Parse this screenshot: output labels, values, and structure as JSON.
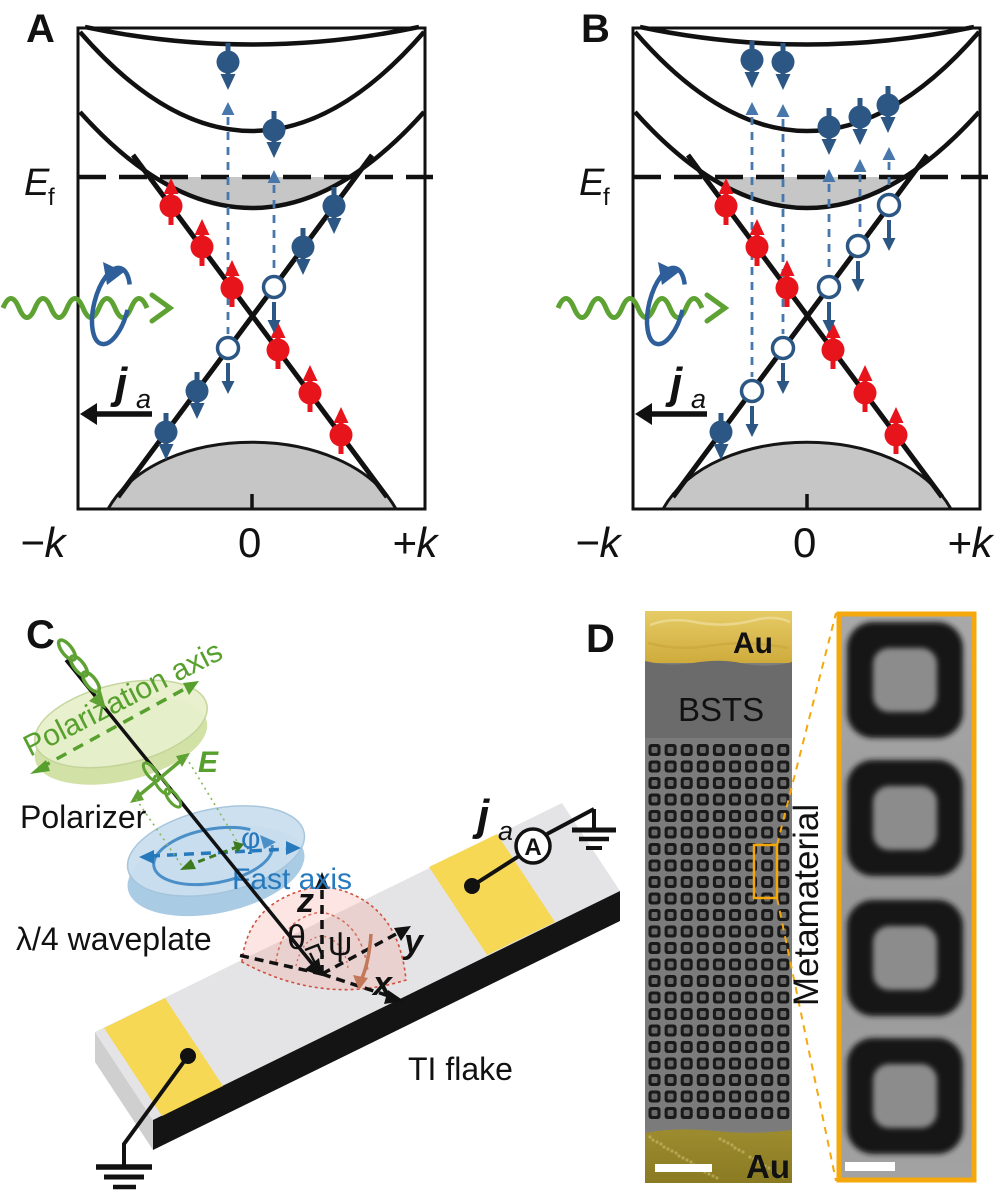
{
  "panels": {
    "a": {
      "label": "A",
      "fermi": "E",
      "fermi_sub": "f",
      "k_neg": "−k",
      "k_zero": "0",
      "k_pos": "+k",
      "current": "j",
      "current_sub": "a"
    },
    "b": {
      "label": "B",
      "fermi": "E",
      "fermi_sub": "f",
      "k_neg": "−k",
      "k_zero": "0",
      "k_pos": "+k",
      "current": "j",
      "current_sub": "a"
    },
    "c": {
      "label": "C",
      "polarization_axis": "Polarization axis",
      "polarizer": "Polarizer",
      "e_field": "E",
      "phi": "φ",
      "fast_axis": "Fast axis",
      "waveplate": "λ/4 waveplate",
      "z": "z",
      "y": "y",
      "x": "x",
      "theta": "θ",
      "psi": "ψ",
      "ti_flake": "TI flake",
      "current": "j",
      "current_sub": "a",
      "ammeter": "A"
    },
    "d": {
      "label": "D",
      "au_top": "Au",
      "bsts": "BSTS",
      "au_bottom": "Au",
      "metamaterial": "Metamaterial",
      "array": {
        "cols": 9,
        "rows": 23
      },
      "inset": {
        "squares": 4
      }
    }
  },
  "colors": {
    "navy": "#2c5784",
    "red": "#e8141c",
    "green": "#5fa234",
    "gold": "#f6d855",
    "orange": "#f2a70a",
    "blue": "#2779bd",
    "gray_band": "#c6c6c6"
  }
}
